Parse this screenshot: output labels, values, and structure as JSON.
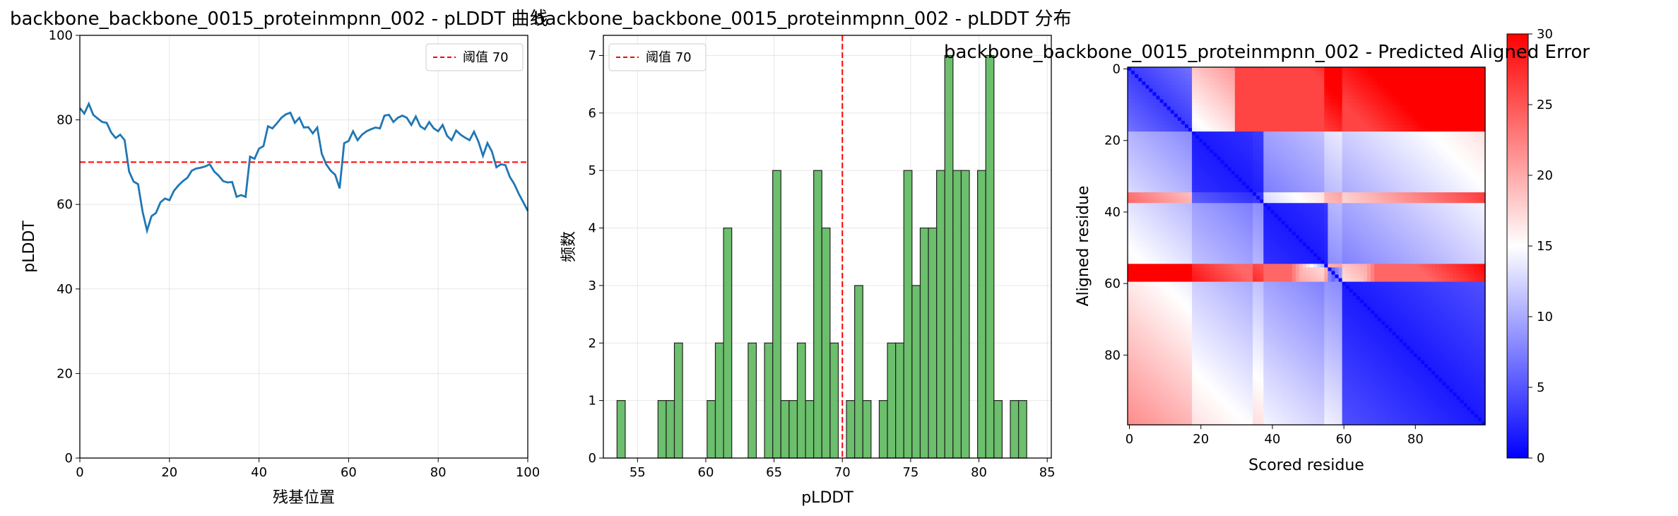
{
  "chart_data": [
    {
      "type": "line",
      "title": "backbone_backbone_0015_proteinmpnn_002 - pLDDT 曲线",
      "xlabel": "残基位置",
      "ylabel": "pLDDT",
      "xlim": [
        0,
        100
      ],
      "ylim": [
        0,
        100
      ],
      "xticks": [
        0,
        20,
        40,
        60,
        80,
        100
      ],
      "yticks": [
        0,
        20,
        40,
        60,
        80,
        100
      ],
      "grid": true,
      "legend": {
        "placement": "upper-right",
        "entries": [
          "阈值 70"
        ]
      },
      "threshold": {
        "value": 70,
        "label": "阈值 70",
        "color": "#ff0000",
        "style": "dashed"
      },
      "series": [
        {
          "color": "#1f77b4",
          "x": [
            0,
            1,
            2,
            3,
            4,
            5,
            6,
            7,
            8,
            9,
            10,
            11,
            12,
            13,
            14,
            15,
            16,
            17,
            18,
            19,
            20,
            21,
            22,
            23,
            24,
            25,
            26,
            27,
            28,
            29,
            30,
            31,
            32,
            33,
            34,
            35,
            36,
            37,
            38,
            39,
            40,
            41,
            42,
            43,
            44,
            45,
            46,
            47,
            48,
            49,
            50,
            51,
            52,
            53,
            54,
            55,
            56,
            57,
            58,
            59,
            60,
            61,
            62,
            63,
            64,
            65,
            66,
            67,
            68,
            69,
            70,
            71,
            72,
            73,
            74,
            75,
            76,
            77,
            78,
            79,
            80,
            81,
            82,
            83,
            84,
            85,
            86,
            87,
            88,
            89,
            90,
            91,
            92,
            93,
            94,
            95,
            96,
            97,
            98,
            99,
            100
          ],
          "y": [
            82.8,
            81.5,
            83.8,
            81.2,
            80.3,
            79.5,
            79.3,
            77.0,
            75.7,
            76.5,
            75.2,
            67.8,
            65.4,
            64.8,
            58.3,
            53.8,
            57.2,
            58.0,
            60.5,
            61.4,
            61.0,
            63.2,
            64.5,
            65.5,
            66.3,
            68.0,
            68.5,
            68.7,
            69.0,
            69.5,
            67.8,
            66.8,
            65.5,
            65.2,
            65.3,
            61.8,
            62.2,
            61.8,
            71.3,
            70.8,
            73.2,
            73.8,
            78.5,
            78.0,
            79.2,
            80.5,
            81.3,
            81.7,
            79.3,
            80.5,
            78.2,
            78.3,
            76.8,
            78.2,
            72.0,
            69.5,
            68.0,
            67.0,
            63.8,
            74.5,
            75.0,
            77.3,
            75.2,
            76.5,
            77.3,
            77.8,
            78.2,
            78.0,
            81.0,
            81.2,
            79.5,
            80.5,
            81.0,
            80.5,
            78.8,
            80.8,
            78.5,
            77.8,
            79.5,
            78.0,
            77.3,
            78.8,
            76.2,
            75.2,
            77.5,
            76.5,
            75.8,
            75.2,
            77.2,
            74.8,
            71.5,
            74.5,
            72.5,
            68.8,
            69.5,
            69.3,
            66.5,
            64.8,
            62.5,
            60.5,
            58.5
          ]
        }
      ]
    },
    {
      "type": "bar",
      "subtype": "histogram",
      "title": "backbone_backbone_0015_proteinmpnn_002 - pLDDT 分布",
      "xlabel": "pLDDT",
      "ylabel": "频数",
      "xlim": [
        52.5,
        85.3
      ],
      "ylim": [
        0,
        7.35
      ],
      "xticks": [
        55,
        60,
        65,
        70,
        75,
        80,
        85
      ],
      "yticks": [
        0,
        1,
        2,
        3,
        4,
        5,
        6,
        7
      ],
      "grid": true,
      "legend": {
        "placement": "upper-left",
        "entries": [
          "阈值 70"
        ]
      },
      "threshold": {
        "value": 70,
        "label": "阈值 70",
        "color": "#ff0000",
        "style": "dashed",
        "orientation": "vertical"
      },
      "bar_color": "#5cb85c",
      "bin_start": 53.5,
      "bin_width": 0.6,
      "counts": [
        1,
        0,
        0,
        0,
        0,
        1,
        1,
        2,
        0,
        0,
        0,
        1,
        2,
        4,
        0,
        0,
        2,
        0,
        2,
        5,
        1,
        1,
        2,
        1,
        5,
        4,
        2,
        0,
        1,
        3,
        1,
        0,
        1,
        2,
        2,
        5,
        3,
        4,
        4,
        5,
        7,
        5,
        5,
        0,
        5,
        7,
        1,
        0,
        1,
        1
      ]
    },
    {
      "type": "heatmap",
      "title": "backbone_backbone_0015_proteinmpnn_002 - Predicted Aligned Error",
      "xlabel": "Scored residue",
      "ylabel": "Aligned residue",
      "n_residues": 100,
      "xticks": [
        0,
        20,
        40,
        60,
        80
      ],
      "yticks": [
        0,
        20,
        40,
        60,
        80
      ],
      "colormap": "bwr",
      "colorbar": {
        "min": 0,
        "max": 30,
        "ticks": [
          0,
          5,
          10,
          15,
          20,
          25,
          30
        ]
      },
      "blocks": [
        [
          0,
          17
        ],
        [
          18,
          37
        ],
        [
          38,
          55
        ],
        [
          56,
          59
        ],
        [
          60,
          99
        ]
      ]
    }
  ]
}
